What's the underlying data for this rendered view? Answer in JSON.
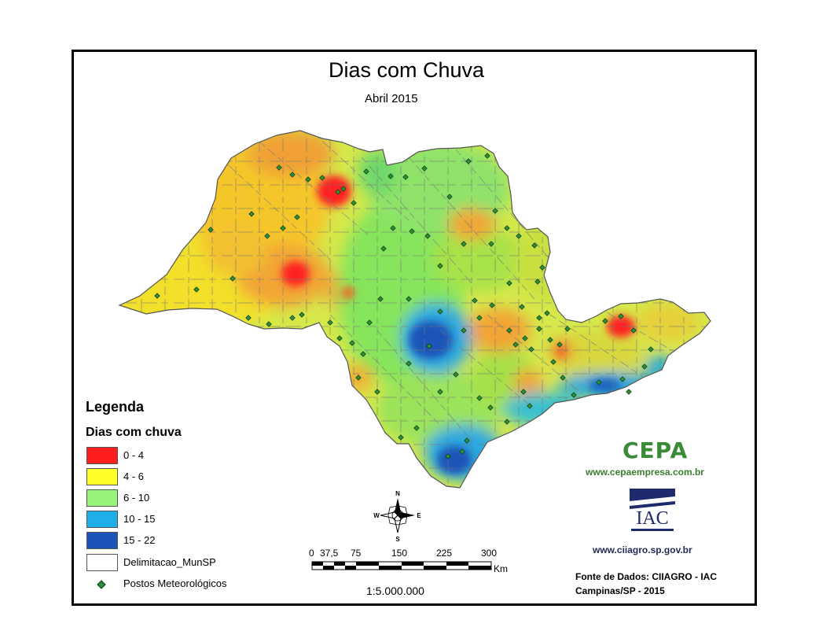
{
  "map": {
    "title": "Dias com Chuva",
    "subtitle": "Abril 2015",
    "region": "São Paulo state",
    "colors": {
      "0-4": "#ff1e1e",
      "4-6": "#ffee33",
      "6-10": "#96f57a",
      "10-15": "#1eaee8",
      "15-22": "#1a54b8",
      "orange": "#f5a030",
      "boundary": "#6e6e6e",
      "station": "#2f8f3a"
    }
  },
  "legend": {
    "title": "Legenda",
    "subtitle": "Dias com chuva",
    "classes": [
      {
        "label": "0 - 4",
        "color": "#ff1e1e"
      },
      {
        "label": "4 - 6",
        "color": "#ffff2a"
      },
      {
        "label": "6 - 10",
        "color": "#96f57a"
      },
      {
        "label": "10 - 15",
        "color": "#1eaee8"
      },
      {
        "label": "15 - 22",
        "color": "#1a54b8"
      },
      {
        "label": "Delimitacao_MunSP",
        "color": "#ffffff"
      }
    ],
    "stations_label": "Postos Meteorológicos"
  },
  "north_arrow": {
    "n": "N",
    "s": "S",
    "e": "E",
    "w": "W"
  },
  "scalebar": {
    "ticks": [
      "0",
      "37,5",
      "75",
      "150",
      "225",
      "300"
    ],
    "unit": "Km",
    "ratio": "1:5.000.000"
  },
  "logos": {
    "cepa_text": "CEPA",
    "cepa_url": "www.cepaempresa.com.br",
    "iac_text": "IAC",
    "iac_url": "www.ciiagro.sp.gov.br"
  },
  "credits": {
    "line1": "Fonte de Dados: CIIAGRO - IAC",
    "line2": "Campinas/SP - 2015"
  }
}
